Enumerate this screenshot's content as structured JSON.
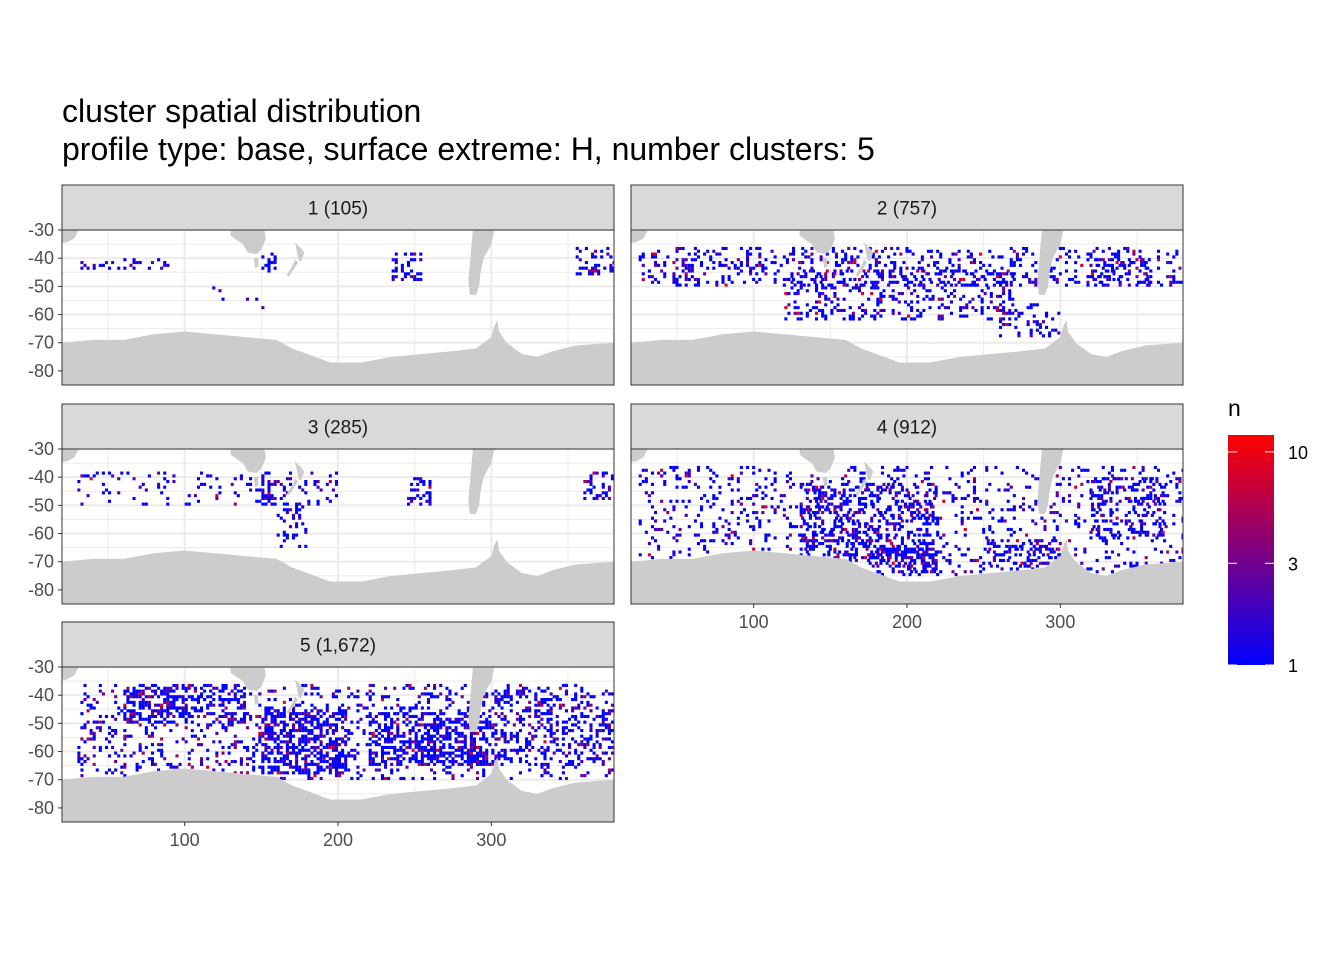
{
  "title": "cluster spatial distribution",
  "subtitle": "profile type: base, surface extreme: H, number clusters: 5",
  "chart_data": {
    "type": "heatmap",
    "facets": [
      {
        "label": "1 (105)",
        "cluster": 1,
        "count": 105
      },
      {
        "label": "2 (757)",
        "cluster": 2,
        "count": 757
      },
      {
        "label": "3 (285)",
        "cluster": 3,
        "count": 285
      },
      {
        "label": "4 (912)",
        "cluster": 4,
        "count": 912
      },
      {
        "label": "5 (1,672)",
        "cluster": 5,
        "count": 1672
      }
    ],
    "xlim": [
      20,
      380
    ],
    "ylim": [
      -85,
      -30
    ],
    "x_ticks": [
      100,
      200,
      300
    ],
    "x_tick_labels": [
      "100",
      "200",
      "300"
    ],
    "y_ticks": [
      -30,
      -40,
      -50,
      -60,
      -70,
      -80
    ],
    "y_tick_labels": [
      "-30",
      "-40",
      "-50",
      "-60",
      "-70",
      "-80"
    ],
    "xlabel": "",
    "ylabel": "",
    "grid": true,
    "legend": {
      "title": "n",
      "position": "right",
      "scale": "log",
      "range": [
        1,
        12
      ],
      "breaks": [
        1,
        3,
        10
      ],
      "break_labels": [
        "1",
        "3",
        "10"
      ],
      "low_color": "#0000ff",
      "high_color": "#ff0000"
    },
    "colors": {
      "land": "#cccccc",
      "panel_background": "#ffffff",
      "grid": "#ebebeb",
      "strip_background": "#d9d9d9",
      "frame": "#333333"
    },
    "density_regions": {
      "1": [
        [
          [
            30,
            90
          ],
          [
            -44,
            -40
          ],
          0.2
        ],
        [
          [
            150,
            160
          ],
          [
            -45,
            -38
          ],
          0.35
        ],
        [
          [
            235,
            255
          ],
          [
            -48,
            -38
          ],
          0.3
        ],
        [
          [
            355,
            380
          ],
          [
            -46,
            -36
          ],
          0.3
        ],
        [
          [
            100,
            155
          ],
          [
            -58,
            -48
          ],
          0.03
        ]
      ],
      "2": [
        [
          [
            25,
            380
          ],
          [
            -50,
            -36
          ],
          0.22
        ],
        [
          [
            120,
            270
          ],
          [
            -62,
            -44
          ],
          0.25
        ],
        [
          [
            260,
            300
          ],
          [
            -68,
            -56
          ],
          0.2
        ],
        [
          [
            320,
            360
          ],
          [
            -50,
            -40
          ],
          0.25
        ]
      ],
      "3": [
        [
          [
            30,
            200
          ],
          [
            -50,
            -38
          ],
          0.12
        ],
        [
          [
            150,
            160
          ],
          [
            -50,
            -38
          ],
          0.4
        ],
        [
          [
            160,
            180
          ],
          [
            -65,
            -50
          ],
          0.25
        ],
        [
          [
            245,
            260
          ],
          [
            -50,
            -40
          ],
          0.4
        ],
        [
          [
            360,
            380
          ],
          [
            -48,
            -38
          ],
          0.35
        ]
      ],
      "4": [
        [
          [
            25,
            380
          ],
          [
            -75,
            -36
          ],
          0.14
        ],
        [
          [
            130,
            220
          ],
          [
            -70,
            -42
          ],
          0.3
        ],
        [
          [
            180,
            220
          ],
          [
            -74,
            -64
          ],
          0.4
        ],
        [
          [
            250,
            300
          ],
          [
            -72,
            -62
          ],
          0.25
        ],
        [
          [
            320,
            370
          ],
          [
            -62,
            -40
          ],
          0.25
        ]
      ],
      "5": [
        [
          [
            30,
            380
          ],
          [
            -70,
            -36
          ],
          0.18
        ],
        [
          [
            60,
            140
          ],
          [
            -50,
            -36
          ],
          0.35
        ],
        [
          [
            150,
            205
          ],
          [
            -68,
            -45
          ],
          0.45
        ],
        [
          [
            220,
            300
          ],
          [
            -65,
            -46
          ],
          0.4
        ],
        [
          [
            300,
            380
          ],
          [
            -65,
            -38
          ],
          0.2
        ]
      ]
    }
  }
}
